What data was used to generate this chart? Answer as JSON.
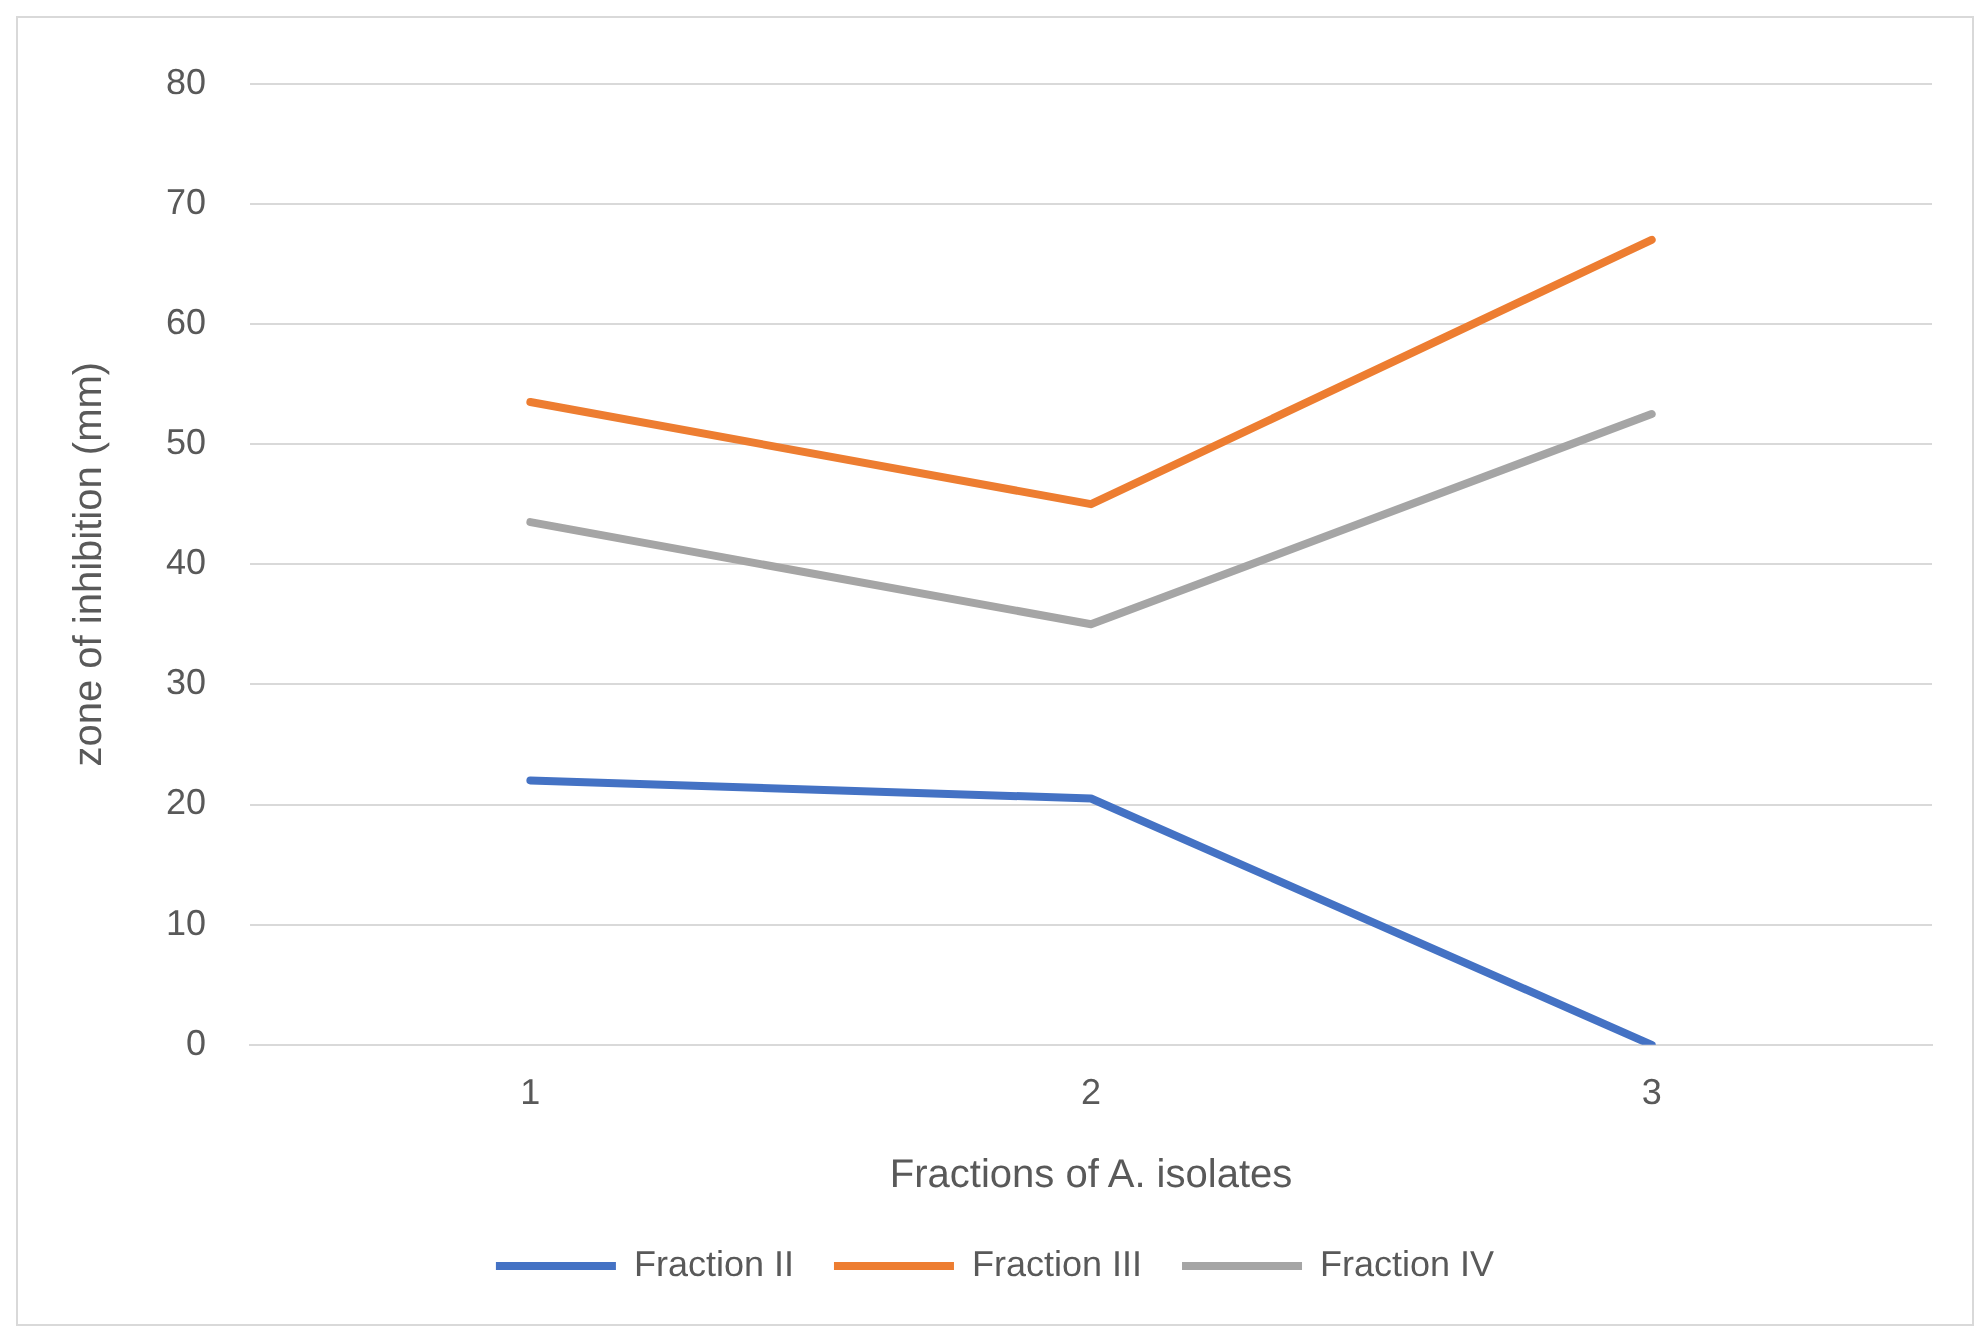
{
  "chart_data": {
    "type": "line",
    "xlabel": "Fractions of A. isolates",
    "ylabel": "zone of inhibition (mm)",
    "categories": [
      "1",
      "2",
      "3"
    ],
    "series": [
      {
        "name": "Fraction II",
        "color": "#4472c4",
        "values": [
          22,
          20.5,
          0
        ]
      },
      {
        "name": "Fraction III",
        "color": "#ed7d31",
        "values": [
          53.5,
          45,
          67
        ]
      },
      {
        "name": "Fraction IV",
        "color": "#a5a5a5",
        "values": [
          43.5,
          35,
          52.5
        ]
      }
    ],
    "ylim": [
      0,
      80
    ],
    "yticks": [
      0,
      10,
      20,
      30,
      40,
      50,
      60,
      70,
      80
    ],
    "grid": "y",
    "legend": "bottom",
    "marker": "none",
    "line_style": "solid"
  }
}
